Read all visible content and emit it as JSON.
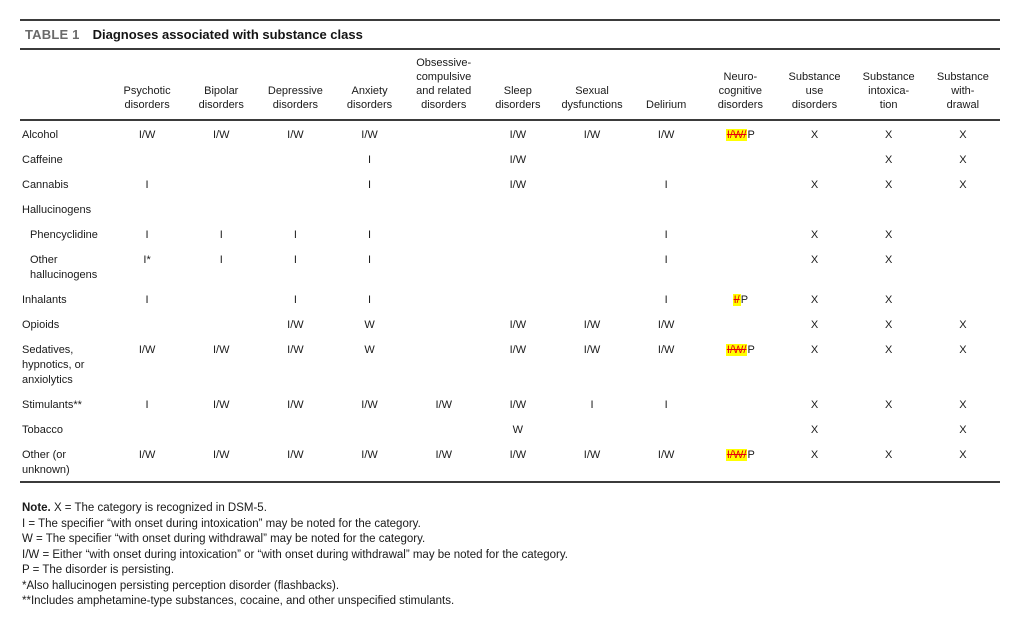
{
  "colors": {
    "highlight": "#ffff00",
    "strike_red": "#e8000d",
    "label_gray": "#6a6a6a",
    "rule": "#3b3b3b",
    "text": "#1a1a1a"
  },
  "table": {
    "label": "TABLE 1",
    "title": "Diagnoses associated with substance class",
    "columns": [
      "Psychotic\ndisorders",
      "Bipolar\ndisorders",
      "Depressive\ndisorders",
      "Anxiety\ndisorders",
      "Obsessive-\ncompulsive\nand related\ndisorders",
      "Sleep\ndisorders",
      "Sexual\ndysfunctions",
      "Delirium",
      "Neuro-\ncognitive\ndisorders",
      "Substance\nuse\ndisorders",
      "Substance\nintoxica-\ntion",
      "Substance\nwith-\ndrawal"
    ],
    "rows": [
      {
        "label": "Alcohol",
        "indent": false,
        "cells": [
          "I/W",
          "I/W",
          "I/W",
          "I/W",
          "",
          "I/W",
          "I/W",
          "I/W",
          {
            "struck": "I/W/",
            "after": "P"
          },
          "X",
          "X",
          "X"
        ]
      },
      {
        "label": "Caffeine",
        "indent": false,
        "cells": [
          "",
          "",
          "",
          "I",
          "",
          "I/W",
          "",
          "",
          "",
          "",
          "X",
          "X"
        ]
      },
      {
        "label": "Cannabis",
        "indent": false,
        "cells": [
          "I",
          "",
          "",
          "I",
          "",
          "I/W",
          "",
          "I",
          "",
          "X",
          "X",
          "X"
        ]
      },
      {
        "label": "Hallucinogens",
        "indent": false,
        "cells": [
          "",
          "",
          "",
          "",
          "",
          "",
          "",
          "",
          "",
          "",
          "",
          ""
        ]
      },
      {
        "label": "Phencyclidine",
        "indent": true,
        "cells": [
          "I",
          "I",
          "I",
          "I",
          "",
          "",
          "",
          "I",
          "",
          "X",
          "X",
          ""
        ]
      },
      {
        "label": "Other\nhallucinogens",
        "indent": true,
        "cells": [
          "I*",
          "I",
          "I",
          "I",
          "",
          "",
          "",
          "I",
          "",
          "X",
          "X",
          ""
        ]
      },
      {
        "label": "Inhalants",
        "indent": false,
        "cells": [
          "I",
          "",
          "I",
          "I",
          "",
          "",
          "",
          "I",
          {
            "struck": "I/",
            "after": "P"
          },
          "X",
          "X",
          ""
        ]
      },
      {
        "label": "Opioids",
        "indent": false,
        "cells": [
          "",
          "",
          "I/W",
          "W",
          "",
          "I/W",
          "I/W",
          "I/W",
          "",
          "X",
          "X",
          "X"
        ]
      },
      {
        "label": "Sedatives,\nhypnotics, or\nanxiolytics",
        "indent": false,
        "cells": [
          "I/W",
          "I/W",
          "I/W",
          "W",
          "",
          "I/W",
          "I/W",
          "I/W",
          {
            "struck": "I/W/",
            "after": "P"
          },
          "X",
          "X",
          "X"
        ]
      },
      {
        "label": "Stimulants**",
        "indent": false,
        "cells": [
          "I",
          "I/W",
          "I/W",
          "I/W",
          "I/W",
          "I/W",
          "I",
          "I",
          "",
          "X",
          "X",
          "X"
        ]
      },
      {
        "label": "Tobacco",
        "indent": false,
        "cells": [
          "",
          "",
          "",
          "",
          "",
          "W",
          "",
          "",
          "",
          "X",
          "",
          "X"
        ]
      },
      {
        "label": "Other (or\nunknown)",
        "indent": false,
        "cells": [
          "I/W",
          "I/W",
          "I/W",
          "I/W",
          "I/W",
          "I/W",
          "I/W",
          "I/W",
          {
            "struck": "I/W/",
            "after": "P"
          },
          "X",
          "X",
          "X"
        ]
      }
    ]
  },
  "footnotes": [
    {
      "prefix": "Note.",
      "text": " X = The category is recognized in DSM-5."
    },
    {
      "prefix": "",
      "text": "I = The specifier “with onset during intoxication” may be noted for the category."
    },
    {
      "prefix": "",
      "text": "W = The specifier “with onset during withdrawal” may be noted for the category."
    },
    {
      "prefix": "",
      "text": "I/W = Either “with onset during intoxication” or “with onset during withdrawal” may be noted for the category."
    },
    {
      "prefix": "",
      "text": "P = The disorder is persisting."
    },
    {
      "prefix": "",
      "text": "*Also hallucinogen persisting perception disorder (flashbacks)."
    },
    {
      "prefix": "",
      "text": "**Includes amphetamine-type substances, cocaine, and other unspecified stimulants."
    }
  ]
}
